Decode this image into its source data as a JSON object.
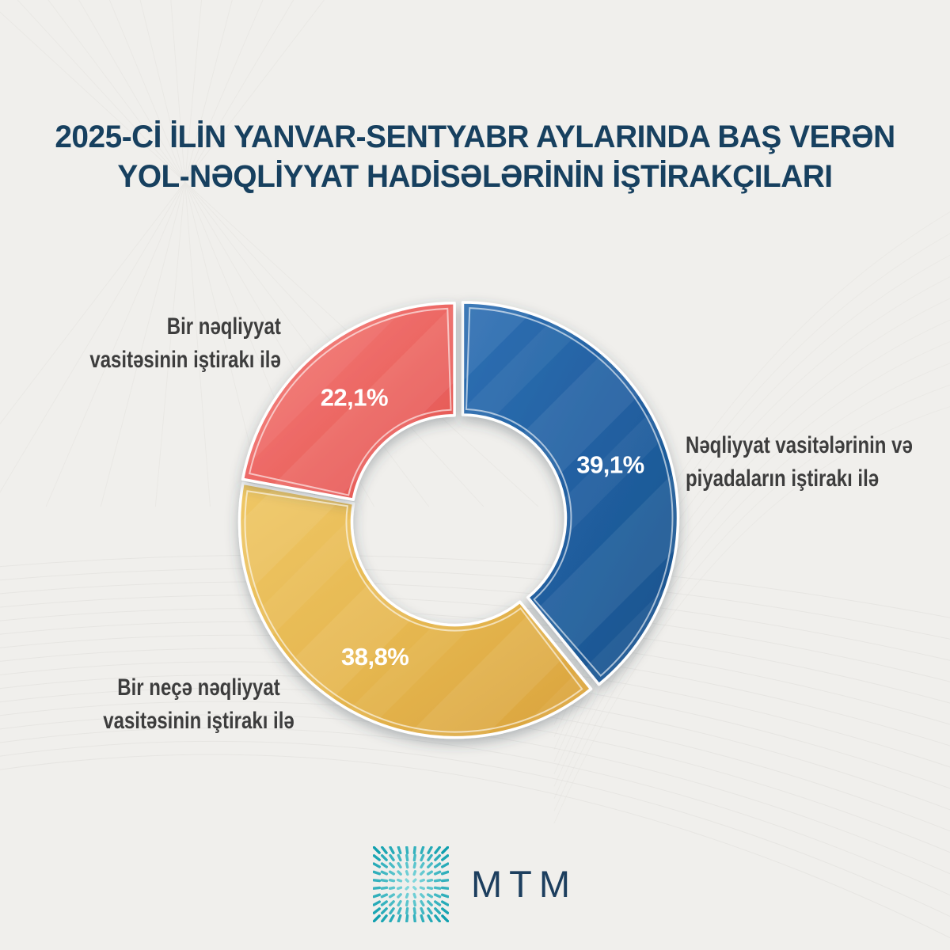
{
  "title": {
    "line1": "2025-Cİ İLİN YANVAR-SENTYABR AYLARINDA BAŞ VERƏN",
    "line2": "YOL-NƏQLİYYAT HADİSƏLƏRİNİN İŞTİRAKÇILARI"
  },
  "chart_data": {
    "type": "pie",
    "subtype": "donut",
    "title": "2025-ci ilin yanvar-sentyabr aylarında baş verən yol-nəqliyyat hadisələrinin iştirakçıları",
    "start_angle_deg": 0,
    "direction": "clockwise",
    "segments": [
      {
        "id": "vehicles-and-pedestrians",
        "label": "Nəqliyyat vasitələrinin və piyadaların iştirakı ilə",
        "value": 39.1,
        "display": "39,1%",
        "color": "#205e9f",
        "color_light": "#2f70b3",
        "color_dark": "#1b538b"
      },
      {
        "id": "multiple-vehicles",
        "label": "Bir neçə nəqliyyat vasitəsinin iştirakı ilə",
        "value": 38.8,
        "display": "38,8%",
        "color": "#e5b64f",
        "color_light": "#efc765",
        "color_dark": "#d9a23c"
      },
      {
        "id": "single-vehicle",
        "label": "Bir nəqliyyat vasitəsinin iştirakı ilə",
        "value": 22.1,
        "display": "22,1%",
        "color": "#ec6662",
        "color_light": "#f3817d",
        "color_dark": "#e1524e"
      }
    ],
    "value_label_color": "#ffffff"
  },
  "annotations": {
    "top_left": {
      "line1": "Bir nəqliyyat",
      "line2": "vasitəsinin iştirakı ilə"
    },
    "right": {
      "line1": "Nəqliyyat vasitələrinin və",
      "line2": "piyadaların iştirakı ilə"
    },
    "bottom_left": {
      "line1": "Bir neçə nəqliyyat",
      "line2": "vasitəsinin iştirakı ilə"
    }
  },
  "logo": {
    "text": "MTM",
    "icon": "burst-grid-icon",
    "icon_color_inner": "#8edee2",
    "icon_color_outer": "#0f9fae",
    "text_color": "#1c3e5e"
  }
}
